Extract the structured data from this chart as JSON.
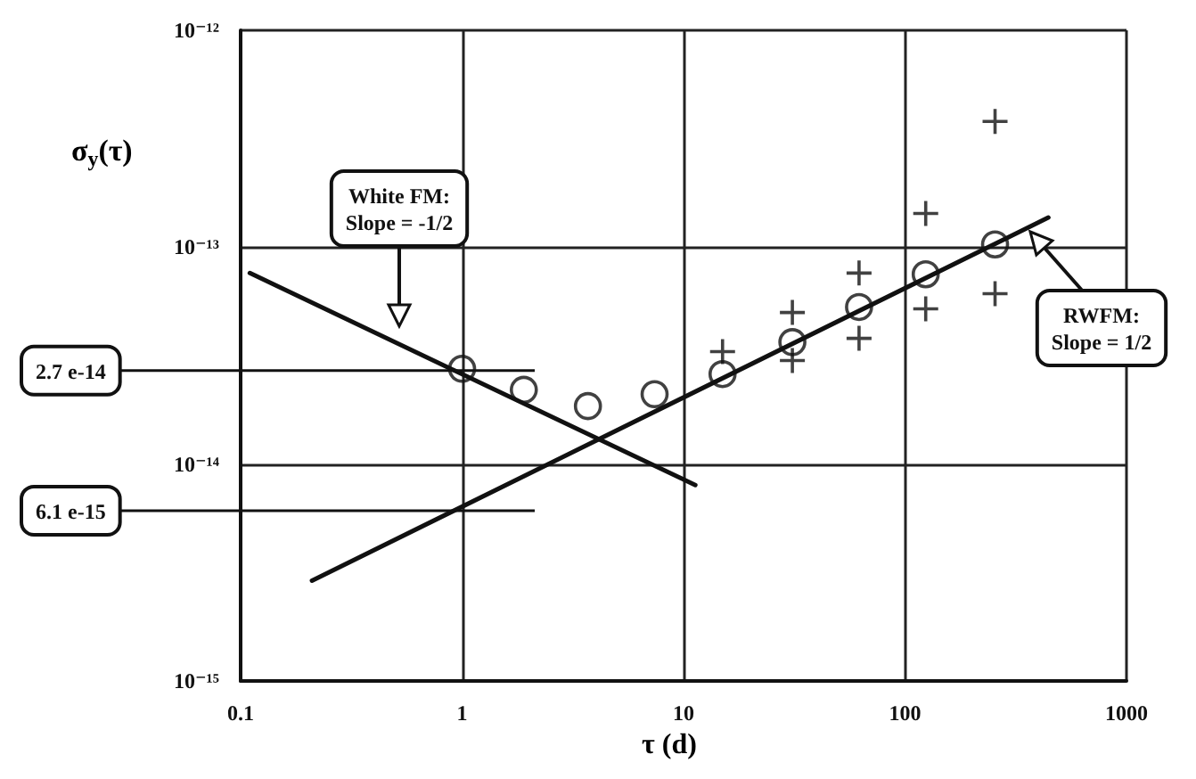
{
  "chart_data": {
    "type": "scatter",
    "xlabel": "τ (d)",
    "ylabel": "σ$_{y}$(τ)",
    "log": "xy",
    "grid": true,
    "xlim": [
      0.1,
      1000
    ],
    "xticks": [
      0.1,
      1,
      10,
      100,
      1000
    ],
    "ylim": [
      1e-15,
      1e-12
    ],
    "yticks": [
      {
        "value": 1e-15,
        "label": "10⁻¹⁵"
      },
      {
        "value": 1e-14,
        "label": "10⁻¹⁴"
      },
      {
        "value": 1e-13,
        "label": "10⁻¹³"
      },
      {
        "value": 1e-12,
        "label": "10⁻¹²"
      }
    ],
    "series": [
      {
        "type": "line",
        "line_style": "solid",
        "color": "#111111",
        "x": [
          0.11,
          11.3
        ],
        "values": [
          7.6e-14,
          8e-15
        ]
      },
      {
        "type": "line",
        "line_style": "solid",
        "color": "#111111",
        "x": [
          0.21,
          444
        ],
        "values": [
          2.9e-15,
          1.37e-13
        ]
      },
      {
        "marker": "circle",
        "color": "#111111",
        "x": [
          1,
          1.9,
          3.7,
          7.4,
          15,
          31,
          62,
          124,
          255
        ],
        "values": [
          2.75e-14,
          2.2e-14,
          1.85e-14,
          2.1e-14,
          2.6e-14,
          3.65e-14,
          5.3e-14,
          7.5e-14,
          1.03e-13
        ]
      },
      {
        "marker": "cross",
        "color": "#111111",
        "x": [
          15,
          31,
          31,
          62,
          62,
          124,
          124,
          255,
          255
        ],
        "values": [
          3.3e-14,
          5e-14,
          3e-14,
          7.6e-14,
          3.8e-14,
          1.43e-13,
          5.2e-14,
          3.8e-13,
          6.1e-14
        ]
      }
    ],
    "annotations": [
      "White FM:\nSlope = -1/2",
      "RWFM:\nSlope = 1/2"
    ],
    "ref_lines": [
      {
        "axis": "y",
        "value": 2.7e-14,
        "label": "2.7 e-14"
      },
      {
        "axis": "y",
        "value": 6.1e-15,
        "label": "6.1 e-15"
      }
    ]
  }
}
